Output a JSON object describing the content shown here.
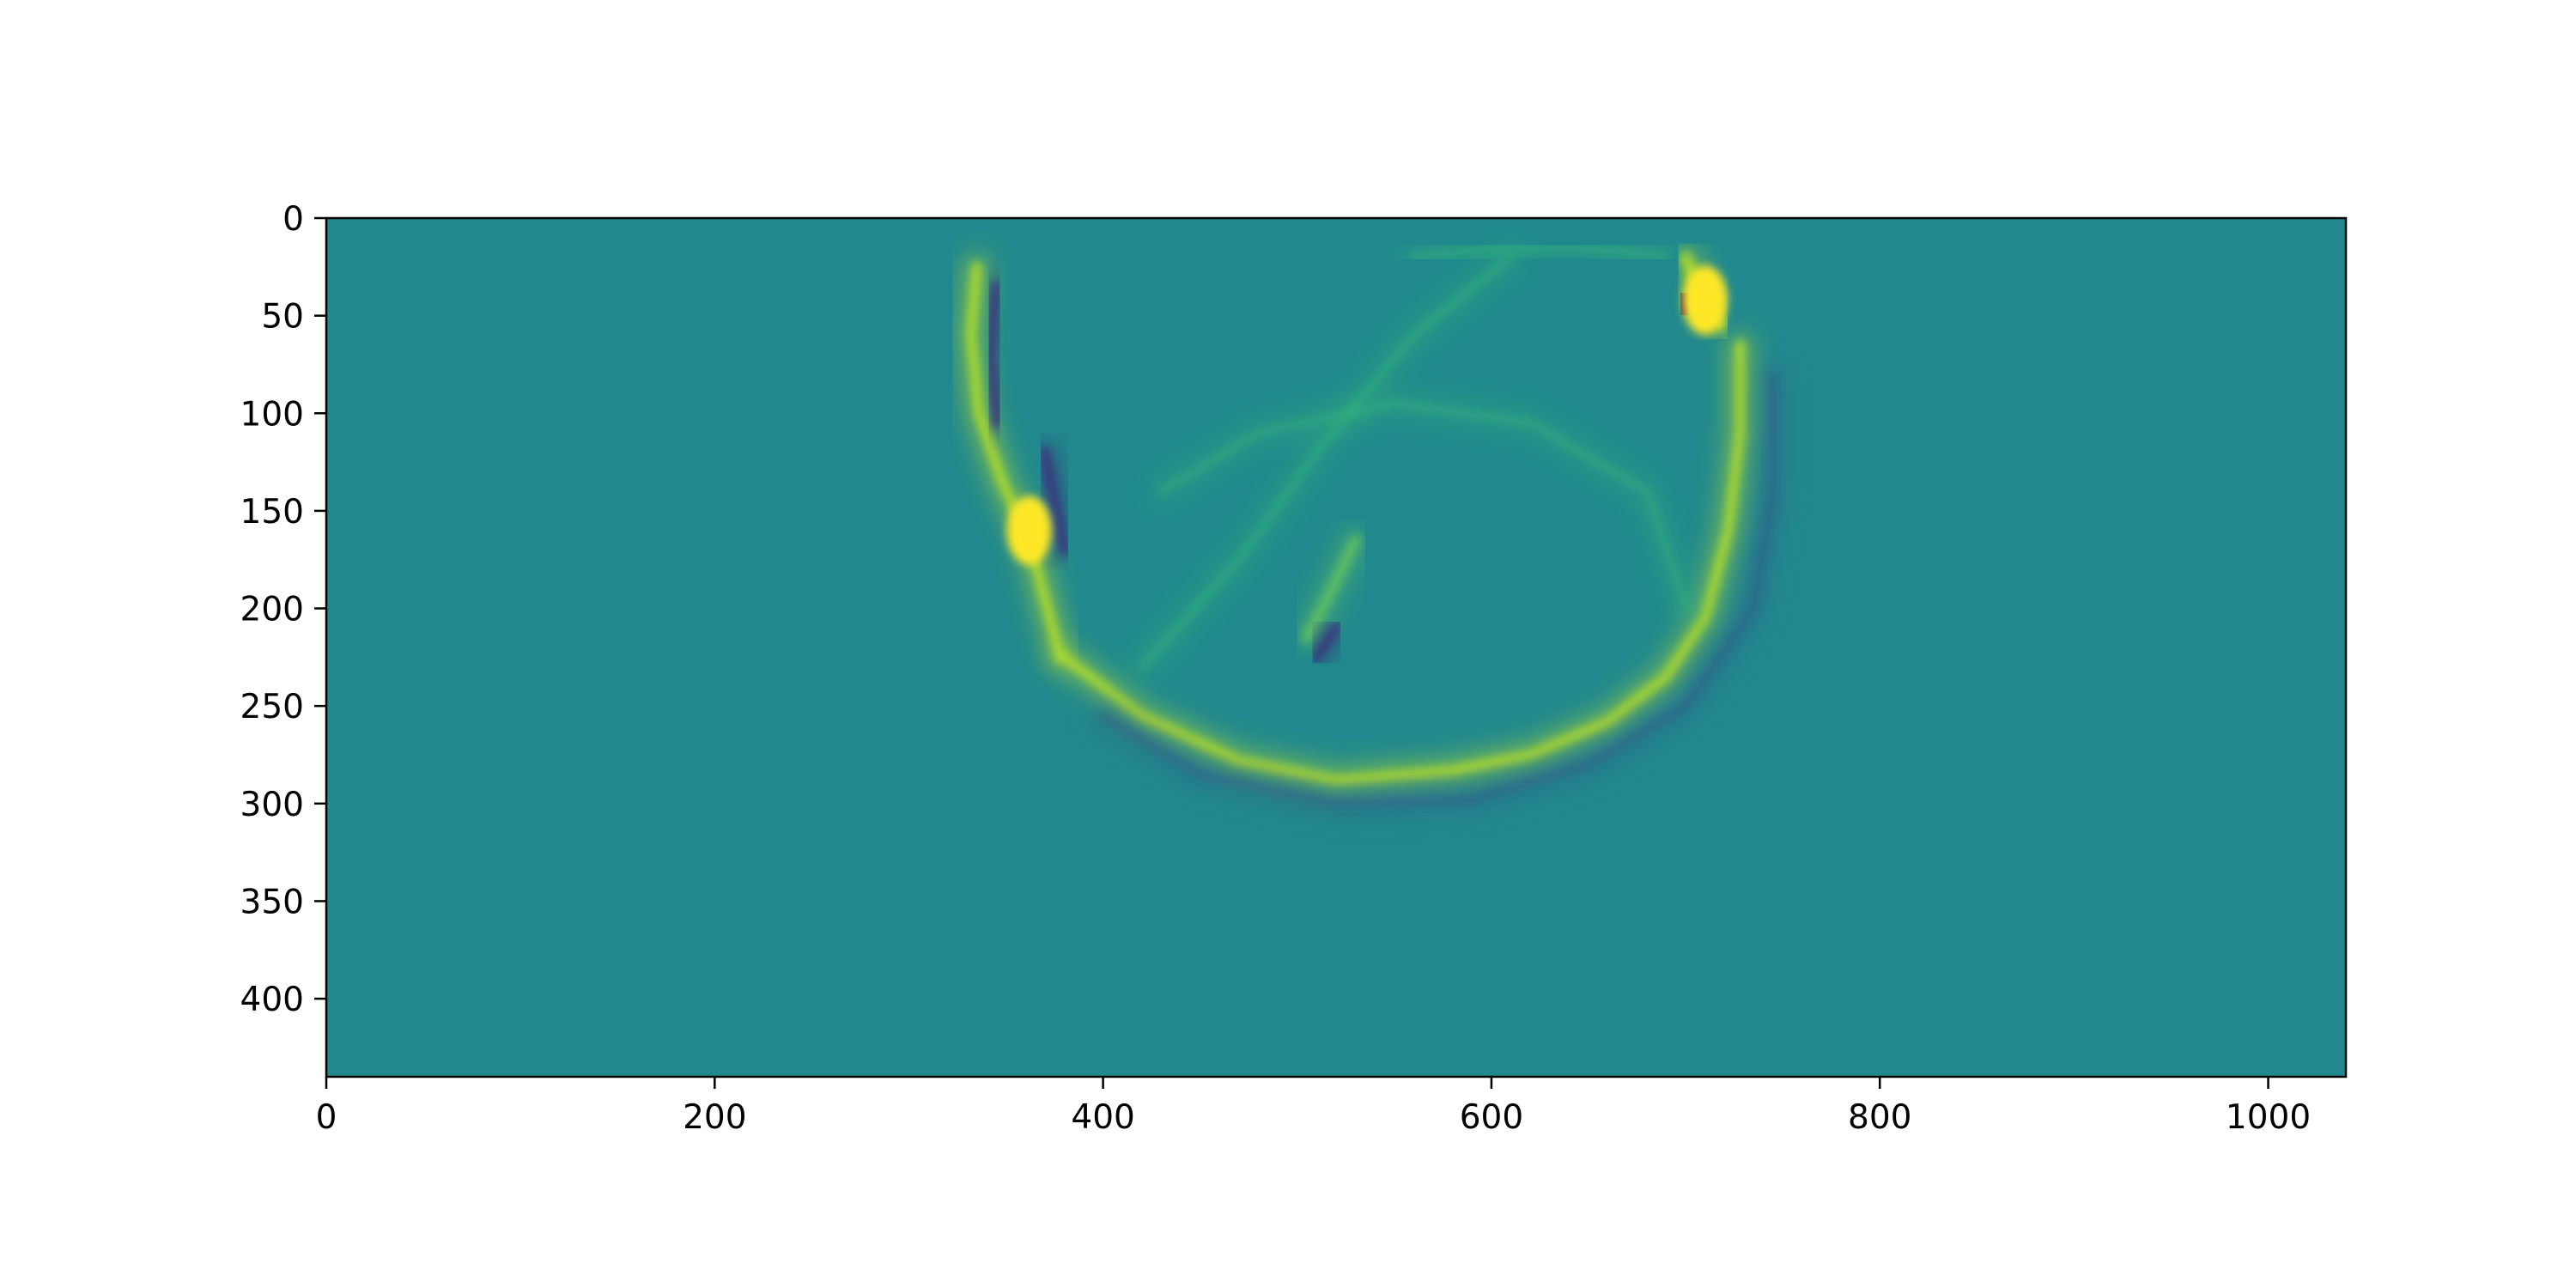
{
  "chart_data": {
    "type": "heatmap",
    "title": "",
    "xlabel": "",
    "ylabel": "",
    "colormap": "viridis",
    "background_color": "#21898d",
    "grid": false,
    "legend": "none",
    "xlim": [
      0,
      1040
    ],
    "ylim": [
      440,
      0
    ],
    "x_ticks": [
      0,
      200,
      400,
      600,
      800,
      1000
    ],
    "y_ticks": [
      0,
      50,
      100,
      150,
      200,
      250,
      300,
      350,
      400
    ],
    "x_tick_labels": [
      "0",
      "200",
      "400",
      "600",
      "800",
      "1000"
    ],
    "y_tick_labels": [
      "0",
      "50",
      "100",
      "150",
      "200",
      "250",
      "300",
      "350",
      "400"
    ],
    "features": [
      {
        "desc": "left bright wavefront",
        "points": [
          [
            335,
            25
          ],
          [
            332,
            60
          ],
          [
            336,
            100
          ],
          [
            348,
            135
          ],
          [
            362,
            165
          ],
          [
            370,
            195
          ],
          [
            378,
            225
          ]
        ],
        "polarity": "positive",
        "intensity": 0.8
      },
      {
        "desc": "left dark companion",
        "points": [
          [
            345,
            35
          ],
          [
            342,
            70
          ],
          [
            346,
            105
          ]
        ],
        "polarity": "negative",
        "intensity": 0.55
      },
      {
        "desc": "left dark streak",
        "points": [
          [
            370,
            120
          ],
          [
            376,
            150
          ],
          [
            380,
            170
          ]
        ],
        "polarity": "negative",
        "intensity": 0.6
      },
      {
        "desc": "left hotspot",
        "points": [
          [
            362,
            160
          ]
        ],
        "polarity": "positive",
        "intensity": 1.0
      },
      {
        "desc": "bottom arc",
        "points": [
          [
            380,
            225
          ],
          [
            420,
            255
          ],
          [
            470,
            278
          ],
          [
            520,
            288
          ],
          [
            580,
            283
          ],
          [
            620,
            275
          ],
          [
            660,
            258
          ],
          [
            690,
            235
          ],
          [
            710,
            205
          ],
          [
            722,
            160
          ],
          [
            728,
            110
          ],
          [
            728,
            65
          ]
        ],
        "polarity": "positive",
        "intensity": 0.75
      },
      {
        "desc": "bottom arc dark rim",
        "points": [
          [
            400,
            255
          ],
          [
            450,
            285
          ],
          [
            520,
            300
          ],
          [
            590,
            298
          ],
          [
            650,
            280
          ],
          [
            700,
            250
          ],
          [
            735,
            200
          ],
          [
            745,
            140
          ],
          [
            745,
            80
          ]
        ],
        "polarity": "negative",
        "intensity": 0.35
      },
      {
        "desc": "right bright wavefront",
        "points": [
          [
            700,
            20
          ],
          [
            708,
            40
          ],
          [
            718,
            55
          ]
        ],
        "polarity": "positive",
        "intensity": 0.9
      },
      {
        "desc": "right dark spot",
        "points": [
          [
            698,
            40
          ],
          [
            701,
            48
          ]
        ],
        "polarity": "negative",
        "intensity": 0.9
      },
      {
        "desc": "right hotspot",
        "points": [
          [
            710,
            42
          ]
        ],
        "polarity": "positive",
        "intensity": 1.0
      },
      {
        "desc": "inner streaks",
        "points": [
          [
            420,
            230
          ],
          [
            470,
            175
          ],
          [
            510,
            120
          ],
          [
            560,
            60
          ],
          [
            610,
            20
          ]
        ],
        "polarity": "positive",
        "intensity": 0.3
      },
      {
        "desc": "inner arc",
        "points": [
          [
            430,
            140
          ],
          [
            480,
            110
          ],
          [
            550,
            95
          ],
          [
            620,
            105
          ],
          [
            680,
            140
          ],
          [
            700,
            200
          ]
        ],
        "polarity": "positive",
        "intensity": 0.25
      },
      {
        "desc": "center bright streak",
        "points": [
          [
            505,
            215
          ],
          [
            518,
            190
          ],
          [
            530,
            165
          ]
        ],
        "polarity": "positive",
        "intensity": 0.5
      },
      {
        "desc": "center dark streak",
        "points": [
          [
            510,
            225
          ],
          [
            520,
            210
          ]
        ],
        "polarity": "negative",
        "intensity": 0.6
      },
      {
        "desc": "top faint arc",
        "points": [
          [
            560,
            20
          ],
          [
            610,
            15
          ],
          [
            650,
            15
          ],
          [
            690,
            20
          ]
        ],
        "polarity": "positive",
        "intensity": 0.25
      }
    ]
  }
}
